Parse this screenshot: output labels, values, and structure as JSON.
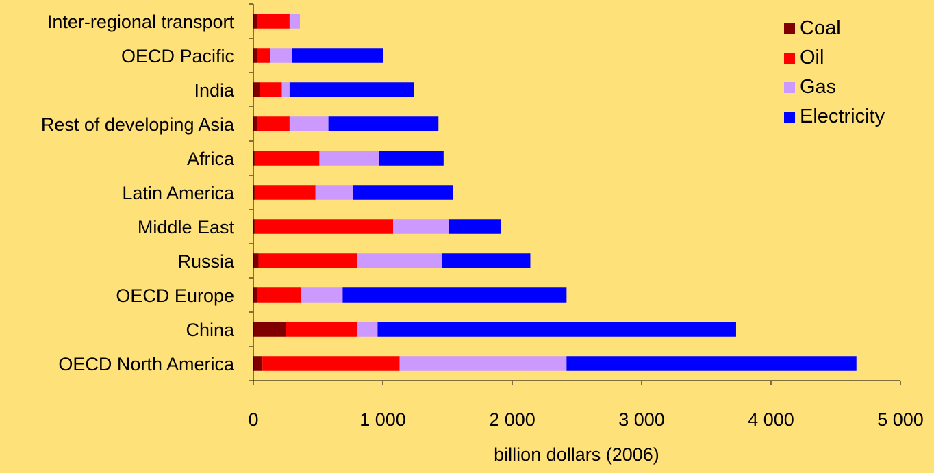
{
  "chart_data": {
    "type": "bar",
    "orientation": "horizontal",
    "stacked": true,
    "title": "",
    "xlabel": "billion dollars (2006)",
    "ylabel": "",
    "xlim": [
      0,
      5000
    ],
    "x_ticks": [
      0,
      1000,
      2000,
      3000,
      4000,
      5000
    ],
    "x_tick_labels": [
      "0",
      "1 000",
      "2 000",
      "3 000",
      "4 000",
      "5 000"
    ],
    "grid": false,
    "legend_position": "top-right",
    "categories": [
      "OECD North America",
      "China",
      "OECD Europe",
      "Russia",
      "Middle East",
      "Latin America",
      "Africa",
      "Rest of developing Asia",
      "India",
      "OECD Pacific",
      "Inter-regional transport"
    ],
    "series": [
      {
        "name": "Coal",
        "color": "#800000",
        "values": [
          70,
          250,
          30,
          40,
          10,
          10,
          10,
          30,
          50,
          30,
          30
        ]
      },
      {
        "name": "Oil",
        "color": "#FF0000",
        "values": [
          1060,
          550,
          340,
          760,
          1070,
          470,
          500,
          250,
          170,
          100,
          250
        ]
      },
      {
        "name": "Gas",
        "color": "#CC99FF",
        "values": [
          1290,
          160,
          320,
          660,
          430,
          290,
          460,
          300,
          60,
          170,
          80
        ]
      },
      {
        "name": "Electricity",
        "color": "#0000FF",
        "values": [
          2240,
          2770,
          1730,
          680,
          400,
          770,
          500,
          850,
          960,
          700,
          0
        ]
      }
    ]
  }
}
